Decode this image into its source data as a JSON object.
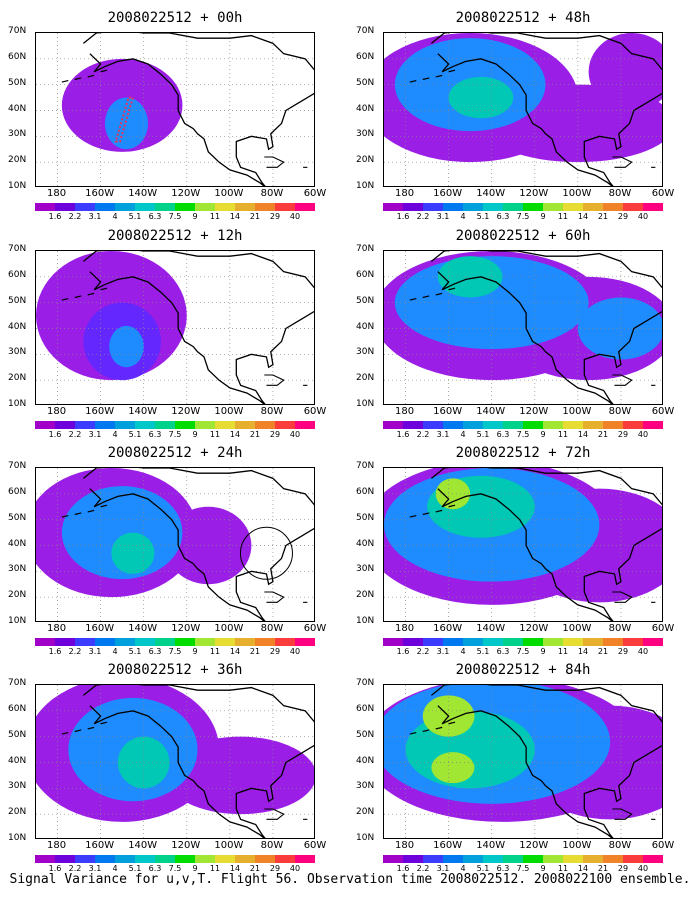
{
  "panels": [
    {
      "title": "2008022512 + 00h",
      "fields": [
        {
          "cx": -150,
          "cy": 42,
          "rx": 28,
          "ry": 18,
          "level": 1
        },
        {
          "cx": -148,
          "cy": 35,
          "rx": 10,
          "ry": 10,
          "level": 3
        }
      ],
      "track": true,
      "circle": false
    },
    {
      "title": "2008022512 + 48h",
      "fields": [
        {
          "cx": -150,
          "cy": 45,
          "rx": 50,
          "ry": 25,
          "level": 1
        },
        {
          "cx": -100,
          "cy": 35,
          "rx": 45,
          "ry": 15,
          "level": 1
        },
        {
          "cx": -75,
          "cy": 55,
          "rx": 20,
          "ry": 15,
          "level": 1
        },
        {
          "cx": -150,
          "cy": 50,
          "rx": 35,
          "ry": 18,
          "level": 3
        },
        {
          "cx": -145,
          "cy": 45,
          "rx": 15,
          "ry": 8,
          "level": 4
        }
      ],
      "track": false,
      "circle": false
    },
    {
      "title": "2008022512 + 12h",
      "fields": [
        {
          "cx": -155,
          "cy": 45,
          "rx": 35,
          "ry": 25,
          "level": 1
        },
        {
          "cx": -150,
          "cy": 35,
          "rx": 18,
          "ry": 15,
          "level": 2
        },
        {
          "cx": -148,
          "cy": 33,
          "rx": 8,
          "ry": 8,
          "level": 3
        }
      ],
      "track": false,
      "circle": false
    },
    {
      "title": "2008022512 + 60h",
      "fields": [
        {
          "cx": -140,
          "cy": 45,
          "rx": 55,
          "ry": 25,
          "level": 1
        },
        {
          "cx": -95,
          "cy": 40,
          "rx": 40,
          "ry": 20,
          "level": 1
        },
        {
          "cx": -140,
          "cy": 50,
          "rx": 45,
          "ry": 18,
          "level": 3
        },
        {
          "cx": -80,
          "cy": 40,
          "rx": 20,
          "ry": 12,
          "level": 3
        },
        {
          "cx": -150,
          "cy": 60,
          "rx": 15,
          "ry": 8,
          "level": 4
        }
      ],
      "track": false,
      "circle": false
    },
    {
      "title": "2008022512 + 24h",
      "fields": [
        {
          "cx": -155,
          "cy": 45,
          "rx": 40,
          "ry": 25,
          "level": 1
        },
        {
          "cx": -110,
          "cy": 40,
          "rx": 20,
          "ry": 15,
          "level": 1
        },
        {
          "cx": -150,
          "cy": 45,
          "rx": 28,
          "ry": 18,
          "level": 3
        },
        {
          "cx": -145,
          "cy": 37,
          "rx": 10,
          "ry": 8,
          "level": 4
        }
      ],
      "track": false,
      "circle": true
    },
    {
      "title": "2008022512 + 72h",
      "fields": [
        {
          "cx": -140,
          "cy": 45,
          "rx": 60,
          "ry": 28,
          "level": 1
        },
        {
          "cx": -90,
          "cy": 40,
          "rx": 40,
          "ry": 22,
          "level": 1
        },
        {
          "cx": -140,
          "cy": 48,
          "rx": 50,
          "ry": 22,
          "level": 3
        },
        {
          "cx": -145,
          "cy": 55,
          "rx": 25,
          "ry": 12,
          "level": 4
        },
        {
          "cx": -158,
          "cy": 60,
          "rx": 8,
          "ry": 6,
          "level": 5
        }
      ],
      "track": false,
      "circle": false
    },
    {
      "title": "2008022512 + 36h",
      "fields": [
        {
          "cx": -150,
          "cy": 45,
          "rx": 45,
          "ry": 28,
          "level": 1
        },
        {
          "cx": -95,
          "cy": 35,
          "rx": 35,
          "ry": 15,
          "level": 1
        },
        {
          "cx": -145,
          "cy": 45,
          "rx": 30,
          "ry": 20,
          "level": 3
        },
        {
          "cx": -140,
          "cy": 40,
          "rx": 12,
          "ry": 10,
          "level": 4
        }
      ],
      "track": false,
      "circle": false
    },
    {
      "title": "2008022512 + 84h",
      "fields": [
        {
          "cx": -135,
          "cy": 45,
          "rx": 65,
          "ry": 28,
          "level": 1
        },
        {
          "cx": -85,
          "cy": 40,
          "rx": 40,
          "ry": 22,
          "level": 1
        },
        {
          "cx": -140,
          "cy": 48,
          "rx": 55,
          "ry": 24,
          "level": 3
        },
        {
          "cx": -150,
          "cy": 45,
          "rx": 30,
          "ry": 15,
          "level": 4
        },
        {
          "cx": -160,
          "cy": 58,
          "rx": 12,
          "ry": 8,
          "level": 5
        },
        {
          "cx": -158,
          "cy": 38,
          "rx": 10,
          "ry": 6,
          "level": 5
        }
      ],
      "track": false,
      "circle": false
    }
  ],
  "y_ticks": [
    "70N",
    "60N",
    "50N",
    "40N",
    "30N",
    "20N",
    "10N"
  ],
  "x_ticks": [
    "180",
    "160W",
    "140W",
    "120W",
    "100W",
    "80W",
    "60W"
  ],
  "colorbar": {
    "labels": [
      "1.6",
      "2.2",
      "3.1",
      "4",
      "5.1",
      "6.3",
      "7.5",
      "9",
      "11",
      "14",
      "21",
      "29",
      "40"
    ],
    "colors": [
      "#a000c8",
      "#6e00dc",
      "#3c3cff",
      "#0078f0",
      "#00a0dc",
      "#00c8c8",
      "#00d28c",
      "#00dc00",
      "#a0e632",
      "#e6dc32",
      "#e6af2d",
      "#f08228",
      "#fa3c3c",
      "#ff0080"
    ]
  },
  "footer": "Signal Variance for u,v,T. Flight 56. Observation time 2008022512. 2008022100 ensemble."
}
